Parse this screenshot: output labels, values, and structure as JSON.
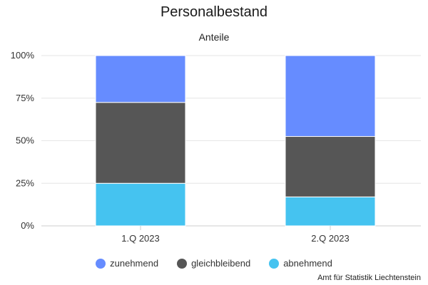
{
  "chart_data": {
    "type": "bar",
    "stacked": true,
    "stacking": "percent",
    "title": "Personalbestand",
    "subtitle": "Anteile",
    "categories": [
      "1.Q 2023",
      "2.Q 2023"
    ],
    "series": [
      {
        "name": "zunehmend",
        "color": "#668cff",
        "values": [
          27.5,
          47.5
        ]
      },
      {
        "name": "gleichbleibend",
        "color": "#565656",
        "values": [
          47.5,
          35.5
        ]
      },
      {
        "name": "abnehmend",
        "color": "#45c3f0",
        "values": [
          25.0,
          17.0
        ]
      }
    ],
    "ylim": [
      0,
      100
    ],
    "yticks": [
      "0%",
      "25%",
      "50%",
      "75%",
      "100%"
    ],
    "grid": true,
    "legend": "bottom"
  },
  "credits": "Amt für Statistik Liechtenstein"
}
